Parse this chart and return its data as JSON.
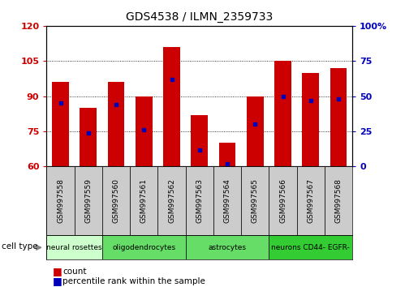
{
  "title": "GDS4538 / ILMN_2359733",
  "samples": [
    "GSM997558",
    "GSM997559",
    "GSM997560",
    "GSM997561",
    "GSM997562",
    "GSM997563",
    "GSM997564",
    "GSM997565",
    "GSM997566",
    "GSM997567",
    "GSM997568"
  ],
  "counts": [
    96,
    85,
    96,
    90,
    111,
    82,
    70,
    90,
    105,
    100,
    102
  ],
  "percentile_ranks": [
    45,
    24,
    44,
    26,
    62,
    12,
    2,
    30,
    50,
    47,
    48
  ],
  "ylim_left": [
    60,
    120
  ],
  "ylim_right": [
    0,
    100
  ],
  "yticks_left": [
    60,
    75,
    90,
    105,
    120
  ],
  "yticks_right": [
    0,
    25,
    50,
    75,
    100
  ],
  "ytick_labels_right": [
    "0",
    "25",
    "50",
    "75",
    "100%"
  ],
  "bar_color": "#cc0000",
  "percentile_color": "#0000bb",
  "ct_ranges": [
    {
      "label": "neural rosettes",
      "start": 0,
      "end": 2,
      "color": "#ccffcc"
    },
    {
      "label": "oligodendrocytes",
      "start": 2,
      "end": 5,
      "color": "#66dd66"
    },
    {
      "label": "astrocytes",
      "start": 5,
      "end": 8,
      "color": "#66dd66"
    },
    {
      "label": "neurons CD44- EGFR-",
      "start": 8,
      "end": 11,
      "color": "#33cc33"
    }
  ],
  "legend_count_label": "count",
  "legend_pct_label": "percentile rank within the sample",
  "tick_color_left": "#cc0000",
  "tick_color_right": "#0000bb",
  "grey_sample_bg": "#cccccc"
}
